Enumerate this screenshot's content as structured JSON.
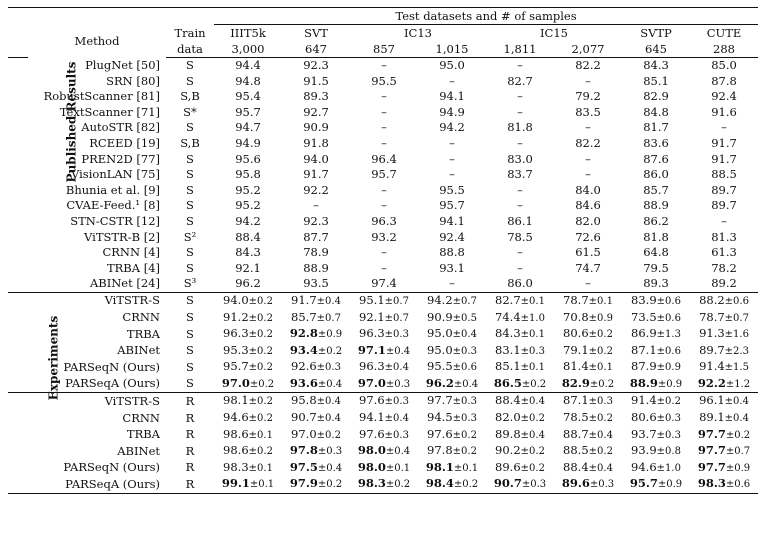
{
  "header": {
    "group_title": "Test datasets and # of samples",
    "method": "Method",
    "train_line1": "Train",
    "train_line2": "data",
    "datasets": [
      {
        "name": "IIIT5k",
        "samples": "3,000"
      },
      {
        "name": "SVT",
        "samples": "647"
      },
      {
        "name": "IC13",
        "samples": [
          "857",
          "1,015"
        ]
      },
      {
        "name": "IC15",
        "samples": [
          "1,811",
          "2,077"
        ]
      },
      {
        "name": "SVTP",
        "samples": "645"
      },
      {
        "name": "CUTE",
        "samples": "288"
      }
    ]
  },
  "section_labels": {
    "published": "Published Results",
    "experiments": "Experiments"
  },
  "published": [
    {
      "method": "PlugNet [50]",
      "train": "S",
      "v": [
        "94.4",
        "92.3",
        "–",
        "95.0",
        "–",
        "82.2",
        "84.3",
        "85.0"
      ]
    },
    {
      "method": "SRN [80]",
      "train": "S",
      "v": [
        "94.8",
        "91.5",
        "95.5",
        "–",
        "82.7",
        "–",
        "85.1",
        "87.8"
      ]
    },
    {
      "method": "RobustScanner [81]",
      "train": "S,B",
      "v": [
        "95.4",
        "89.3",
        "–",
        "94.1",
        "–",
        "79.2",
        "82.9",
        "92.4"
      ]
    },
    {
      "method": "TextScanner [71]",
      "train": "S*",
      "v": [
        "95.7",
        "92.7",
        "–",
        "94.9",
        "–",
        "83.5",
        "84.8",
        "91.6"
      ]
    },
    {
      "method": "AutoSTR [82]",
      "train": "S",
      "v": [
        "94.7",
        "90.9",
        "–",
        "94.2",
        "81.8",
        "–",
        "81.7",
        "–"
      ]
    },
    {
      "method": "RCEED [19]",
      "train": "S,B",
      "v": [
        "94.9",
        "91.8",
        "–",
        "–",
        "–",
        "82.2",
        "83.6",
        "91.7"
      ]
    },
    {
      "method": "PREN2D [77]",
      "train": "S",
      "v": [
        "95.6",
        "94.0",
        "96.4",
        "–",
        "83.0",
        "–",
        "87.6",
        "91.7"
      ]
    },
    {
      "method": "VisionLAN [75]",
      "train": "S",
      "v": [
        "95.8",
        "91.7",
        "95.7",
        "–",
        "83.7",
        "–",
        "86.0",
        "88.5"
      ]
    },
    {
      "method": "Bhunia et al. [9]",
      "train": "S",
      "v": [
        "95.2",
        "92.2",
        "–",
        "95.5",
        "–",
        "84.0",
        "85.7",
        "89.7"
      ]
    },
    {
      "method": "CVAE-Feed.¹ [8]",
      "train": "S",
      "v": [
        "95.2",
        "–",
        "–",
        "95.7",
        "–",
        "84.6",
        "88.9",
        "89.7"
      ]
    },
    {
      "method": "STN-CSTR [12]",
      "train": "S",
      "v": [
        "94.2",
        "92.3",
        "96.3",
        "94.1",
        "86.1",
        "82.0",
        "86.2",
        "–"
      ]
    },
    {
      "method": "ViTSTR-B [2]",
      "train": "S²",
      "v": [
        "88.4",
        "87.7",
        "93.2",
        "92.4",
        "78.5",
        "72.6",
        "81.8",
        "81.3"
      ]
    },
    {
      "method": "CRNN [4]",
      "train": "S",
      "v": [
        "84.3",
        "78.9",
        "–",
        "88.8",
        "–",
        "61.5",
        "64.8",
        "61.3"
      ]
    },
    {
      "method": "TRBA [4]",
      "train": "S",
      "v": [
        "92.1",
        "88.9",
        "–",
        "93.1",
        "–",
        "74.7",
        "79.5",
        "78.2"
      ]
    },
    {
      "method": "ABINet [24]",
      "train": "S³",
      "v": [
        "96.2",
        "93.5",
        "97.4",
        "–",
        "86.0",
        "–",
        "89.3",
        "89.2"
      ]
    }
  ],
  "experiments_synthetic": [
    {
      "method": "ViTSTR-S",
      "train": "S",
      "v": [
        [
          "94.0",
          "±0.2"
        ],
        [
          "91.7",
          "±0.4"
        ],
        [
          "95.1",
          "±0.7"
        ],
        [
          "94.2",
          "±0.7"
        ],
        [
          "82.7",
          "±0.1"
        ],
        [
          "78.7",
          "±0.1"
        ],
        [
          "83.9",
          "±0.6"
        ],
        [
          "88.2",
          "±0.6"
        ]
      ],
      "bold": []
    },
    {
      "method": "CRNN",
      "train": "S",
      "v": [
        [
          "91.2",
          "±0.2"
        ],
        [
          "85.7",
          "±0.7"
        ],
        [
          "92.1",
          "±0.7"
        ],
        [
          "90.9",
          "±0.5"
        ],
        [
          "74.4",
          "±1.0"
        ],
        [
          "70.8",
          "±0.9"
        ],
        [
          "73.5",
          "±0.6"
        ],
        [
          "78.7",
          "±0.7"
        ]
      ],
      "bold": []
    },
    {
      "method": "TRBA",
      "train": "S",
      "v": [
        [
          "96.3",
          "±0.2"
        ],
        [
          "92.8",
          "±0.9"
        ],
        [
          "96.3",
          "±0.3"
        ],
        [
          "95.0",
          "±0.4"
        ],
        [
          "84.3",
          "±0.1"
        ],
        [
          "80.6",
          "±0.2"
        ],
        [
          "86.9",
          "±1.3"
        ],
        [
          "91.3",
          "±1.6"
        ]
      ],
      "bold": [
        1
      ]
    },
    {
      "method": "ABINet",
      "train": "S",
      "v": [
        [
          "95.3",
          "±0.2"
        ],
        [
          "93.4",
          "±0.2"
        ],
        [
          "97.1",
          "±0.4"
        ],
        [
          "95.0",
          "±0.3"
        ],
        [
          "83.1",
          "±0.3"
        ],
        [
          "79.1",
          "±0.2"
        ],
        [
          "87.1",
          "±0.6"
        ],
        [
          "89.7",
          "±2.3"
        ]
      ],
      "bold": [
        1,
        2
      ]
    },
    {
      "method": "PARSeqN (Ours)",
      "train": "S",
      "v": [
        [
          "95.7",
          "±0.2"
        ],
        [
          "92.6",
          "±0.3"
        ],
        [
          "96.3",
          "±0.4"
        ],
        [
          "95.5",
          "±0.6"
        ],
        [
          "85.1",
          "±0.1"
        ],
        [
          "81.4",
          "±0.1"
        ],
        [
          "87.9",
          "±0.9"
        ],
        [
          "91.4",
          "±1.5"
        ]
      ],
      "bold": []
    },
    {
      "method": "PARSeqA (Ours)",
      "train": "S",
      "v": [
        [
          "97.0",
          "±0.2"
        ],
        [
          "93.6",
          "±0.4"
        ],
        [
          "97.0",
          "±0.3"
        ],
        [
          "96.2",
          "±0.4"
        ],
        [
          "86.5",
          "±0.2"
        ],
        [
          "82.9",
          "±0.2"
        ],
        [
          "88.9",
          "±0.9"
        ],
        [
          "92.2",
          "±1.2"
        ]
      ],
      "bold": [
        0,
        1,
        2,
        3,
        4,
        5,
        6,
        7
      ]
    }
  ],
  "experiments_real": [
    {
      "method": "ViTSTR-S",
      "train": "R",
      "v": [
        [
          "98.1",
          "±0.2"
        ],
        [
          "95.8",
          "±0.4"
        ],
        [
          "97.6",
          "±0.3"
        ],
        [
          "97.7",
          "±0.3"
        ],
        [
          "88.4",
          "±0.4"
        ],
        [
          "87.1",
          "±0.3"
        ],
        [
          "91.4",
          "±0.2"
        ],
        [
          "96.1",
          "±0.4"
        ]
      ],
      "bold": []
    },
    {
      "method": "CRNN",
      "train": "R",
      "v": [
        [
          "94.6",
          "±0.2"
        ],
        [
          "90.7",
          "±0.4"
        ],
        [
          "94.1",
          "±0.4"
        ],
        [
          "94.5",
          "±0.3"
        ],
        [
          "82.0",
          "±0.2"
        ],
        [
          "78.5",
          "±0.2"
        ],
        [
          "80.6",
          "±0.3"
        ],
        [
          "89.1",
          "±0.4"
        ]
      ],
      "bold": []
    },
    {
      "method": "TRBA",
      "train": "R",
      "v": [
        [
          "98.6",
          "±0.1"
        ],
        [
          "97.0",
          "±0.2"
        ],
        [
          "97.6",
          "±0.3"
        ],
        [
          "97.6",
          "±0.2"
        ],
        [
          "89.8",
          "±0.4"
        ],
        [
          "88.7",
          "±0.4"
        ],
        [
          "93.7",
          "±0.3"
        ],
        [
          "97.7",
          "±0.2"
        ]
      ],
      "bold": [
        7
      ]
    },
    {
      "method": "ABINet",
      "train": "R",
      "v": [
        [
          "98.6",
          "±0.2"
        ],
        [
          "97.8",
          "±0.3"
        ],
        [
          "98.0",
          "±0.4"
        ],
        [
          "97.8",
          "±0.2"
        ],
        [
          "90.2",
          "±0.2"
        ],
        [
          "88.5",
          "±0.2"
        ],
        [
          "93.9",
          "±0.8"
        ],
        [
          "97.7",
          "±0.7"
        ]
      ],
      "bold": [
        1,
        2,
        7
      ]
    },
    {
      "method": "PARSeqN (Ours)",
      "train": "R",
      "v": [
        [
          "98.3",
          "±0.1"
        ],
        [
          "97.5",
          "±0.4"
        ],
        [
          "98.0",
          "±0.1"
        ],
        [
          "98.1",
          "±0.1"
        ],
        [
          "89.6",
          "±0.2"
        ],
        [
          "88.4",
          "±0.4"
        ],
        [
          "94.6",
          "±1.0"
        ],
        [
          "97.7",
          "±0.9"
        ]
      ],
      "bold": [
        1,
        2,
        3,
        7
      ]
    },
    {
      "method": "PARSeqA (Ours)",
      "train": "R",
      "v": [
        [
          "99.1",
          "±0.1"
        ],
        [
          "97.9",
          "±0.2"
        ],
        [
          "98.3",
          "±0.2"
        ],
        [
          "98.4",
          "±0.2"
        ],
        [
          "90.7",
          "±0.3"
        ],
        [
          "89.6",
          "±0.3"
        ],
        [
          "95.7",
          "±0.9"
        ],
        [
          "98.3",
          "±0.6"
        ]
      ],
      "bold": [
        0,
        1,
        2,
        3,
        4,
        5,
        6,
        7
      ]
    }
  ]
}
